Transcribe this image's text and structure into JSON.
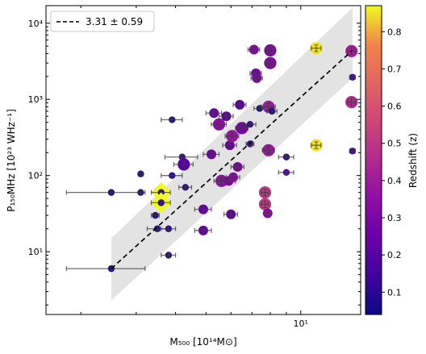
{
  "chart_data": {
    "type": "scatter",
    "title": "",
    "xlabel": "M₅₀₀ [10¹⁴M⊙]",
    "ylabel": "P₁₅₀MHz [10²³ WHz⁻¹]",
    "xscale": "log",
    "yscale": "log",
    "xlim": [
      1.55,
      15.5
    ],
    "ylim": [
      1.5,
      17000
    ],
    "x_ticks": [
      {
        "value": 10,
        "label": "10¹"
      }
    ],
    "y_ticks": [
      {
        "value": 10,
        "label": "10¹"
      },
      {
        "value": 100,
        "label": "10²"
      },
      {
        "value": 1000,
        "label": "10³"
      },
      {
        "value": 10000,
        "label": "10⁴"
      }
    ],
    "legend": {
      "placement": "top-left",
      "entries": [
        {
          "label": "3.31 ± 0.59",
          "style": "dashed",
          "color": "#000000"
        }
      ]
    },
    "fit": {
      "label": "3.31 ± 0.59",
      "line": {
        "x": [
          2.5,
          14.6
        ],
        "y": [
          6,
          4400
        ]
      },
      "band_upper": {
        "x": [
          2.5,
          14.6
        ],
        "y": [
          15,
          16000
        ]
      },
      "band_lower": {
        "x": [
          2.5,
          14.6
        ],
        "y": [
          2.3,
          1900
        ]
      }
    },
    "colorbar": {
      "label": "Redshift (z)",
      "range": [
        0.04,
        0.87
      ],
      "ticks": [
        0.1,
        0.2,
        0.3,
        0.4,
        0.5,
        0.6,
        0.7,
        0.8
      ],
      "tick_labels": [
        "0.1",
        "0.2",
        "0.3",
        "0.4",
        "0.5",
        "0.6",
        "0.7",
        "0.8"
      ],
      "colormap": "plasma"
    },
    "points": [
      {
        "x": 2.5,
        "y": 6,
        "xerr": 0.7,
        "z": 0.07,
        "size": "small"
      },
      {
        "x": 2.5,
        "y": 60,
        "xerr": 0.7,
        "z": 0.07,
        "size": "small"
      },
      {
        "x": 3.1,
        "y": 60,
        "xerr": 0.05,
        "z": 0.07,
        "size": "small"
      },
      {
        "x": 3.1,
        "y": 105,
        "xerr": 0.05,
        "z": 0.06,
        "size": "small"
      },
      {
        "x": 3.45,
        "y": 30,
        "xerr": 0.1,
        "z": 0.08,
        "size": "small"
      },
      {
        "x": 3.5,
        "y": 20,
        "xerr": 0.25,
        "z": 0.08,
        "size": "small"
      },
      {
        "x": 3.6,
        "y": 60,
        "xerr": 0.25,
        "z": 0.1,
        "size": "small",
        "highlight": true
      },
      {
        "x": 3.6,
        "y": 44,
        "xerr": 0.25,
        "z": 0.1,
        "size": "small",
        "highlight": true
      },
      {
        "x": 3.8,
        "y": 9,
        "xerr": 0.2,
        "z": 0.1,
        "size": "small"
      },
      {
        "x": 3.8,
        "y": 20,
        "xerr": 0.2,
        "z": 0.1,
        "size": "small"
      },
      {
        "x": 3.9,
        "y": 540,
        "xerr": 0.3,
        "z": 0.1,
        "size": "small"
      },
      {
        "x": 3.9,
        "y": 100,
        "xerr": 0.3,
        "z": 0.1,
        "size": "small"
      },
      {
        "x": 4.2,
        "y": 175,
        "xerr": 0.5,
        "z": 0.13,
        "size": "small"
      },
      {
        "x": 4.25,
        "y": 140,
        "xerr": 0.3,
        "z": 0.2,
        "size": "large"
      },
      {
        "x": 4.3,
        "y": 70,
        "xerr": 0.2,
        "z": 0.1,
        "size": "small"
      },
      {
        "x": 4.9,
        "y": 36,
        "xerr": 0.3,
        "z": 0.24,
        "size": "medium"
      },
      {
        "x": 4.9,
        "y": 19,
        "xerr": 0.3,
        "z": 0.24,
        "size": "medium"
      },
      {
        "x": 5.2,
        "y": 190,
        "xerr": 0.3,
        "z": 0.26,
        "size": "medium"
      },
      {
        "x": 5.3,
        "y": 660,
        "xerr": 0.3,
        "z": 0.26,
        "size": "medium"
      },
      {
        "x": 5.5,
        "y": 470,
        "xerr": 0.3,
        "z": 0.35,
        "size": "large"
      },
      {
        "x": 5.6,
        "y": 85,
        "xerr": 0.3,
        "z": 0.36,
        "size": "large"
      },
      {
        "x": 5.8,
        "y": 600,
        "xerr": 0.3,
        "z": 0.22,
        "size": "medium"
      },
      {
        "x": 5.9,
        "y": 85,
        "xerr": 0.3,
        "z": 0.3,
        "size": "medium"
      },
      {
        "x": 5.95,
        "y": 250,
        "xerr": 0.3,
        "z": 0.25,
        "size": "medium"
      },
      {
        "x": 6.0,
        "y": 31,
        "xerr": 0.3,
        "z": 0.24,
        "size": "medium"
      },
      {
        "x": 6.05,
        "y": 330,
        "xerr": 0.3,
        "z": 0.38,
        "size": "large"
      },
      {
        "x": 6.1,
        "y": 95,
        "xerr": 0.3,
        "z": 0.34,
        "size": "medium"
      },
      {
        "x": 6.3,
        "y": 130,
        "xerr": 0.3,
        "z": 0.3,
        "size": "medium"
      },
      {
        "x": 6.4,
        "y": 850,
        "xerr": 0.3,
        "z": 0.21,
        "size": "medium"
      },
      {
        "x": 6.5,
        "y": 420,
        "xerr": 0.3,
        "z": 0.28,
        "size": "large"
      },
      {
        "x": 6.9,
        "y": 260,
        "xerr": 0.2,
        "z": 0.15,
        "size": "small"
      },
      {
        "x": 6.9,
        "y": 470,
        "xerr": 0.3,
        "z": 0.1,
        "size": "small"
      },
      {
        "x": 7.1,
        "y": 4500,
        "xerr": 0.3,
        "z": 0.32,
        "size": "medium"
      },
      {
        "x": 7.2,
        "y": 2200,
        "xerr": 0.3,
        "z": 0.28,
        "size": "medium"
      },
      {
        "x": 7.25,
        "y": 1900,
        "xerr": 0.3,
        "z": 0.3,
        "size": "medium"
      },
      {
        "x": 7.4,
        "y": 760,
        "xerr": 0.3,
        "z": 0.06,
        "size": "small"
      },
      {
        "x": 7.7,
        "y": 60,
        "xerr": 0.2,
        "z": 0.5,
        "size": "large"
      },
      {
        "x": 7.7,
        "y": 42,
        "xerr": 0.2,
        "z": 0.5,
        "size": "large"
      },
      {
        "x": 7.85,
        "y": 32,
        "xerr": 0.2,
        "z": 0.35,
        "size": "medium"
      },
      {
        "x": 7.9,
        "y": 215,
        "xerr": 0.35,
        "z": 0.38,
        "size": "large"
      },
      {
        "x": 7.9,
        "y": 800,
        "xerr": 0.4,
        "z": 0.4,
        "size": "large"
      },
      {
        "x": 8.0,
        "y": 4400,
        "xerr": 0.3,
        "z": 0.32,
        "size": "large"
      },
      {
        "x": 8.0,
        "y": 3000,
        "xerr": 0.3,
        "z": 0.32,
        "size": "large"
      },
      {
        "x": 8.1,
        "y": 700,
        "xerr": 0.3,
        "z": 0.06,
        "size": "small"
      },
      {
        "x": 9.0,
        "y": 175,
        "xerr": 0.5,
        "z": 0.13,
        "size": "small"
      },
      {
        "x": 9.0,
        "y": 110,
        "xerr": 0.5,
        "z": 0.2,
        "size": "small"
      },
      {
        "x": 11.2,
        "y": 4700,
        "xerr": 0.4,
        "z": 0.85,
        "size": "large"
      },
      {
        "x": 11.2,
        "y": 250,
        "xerr": 0.4,
        "z": 0.85,
        "size": "large"
      },
      {
        "x": 14.5,
        "y": 4300,
        "xerr": 0.4,
        "z": 0.42,
        "size": "large"
      },
      {
        "x": 14.5,
        "y": 920,
        "xerr": 0.4,
        "z": 0.45,
        "size": "large"
      },
      {
        "x": 14.6,
        "y": 1950,
        "xerr": 0.3,
        "z": 0.15,
        "size": "small"
      },
      {
        "x": 14.6,
        "y": 210,
        "xerr": 0.3,
        "z": 0.15,
        "size": "small"
      }
    ]
  }
}
